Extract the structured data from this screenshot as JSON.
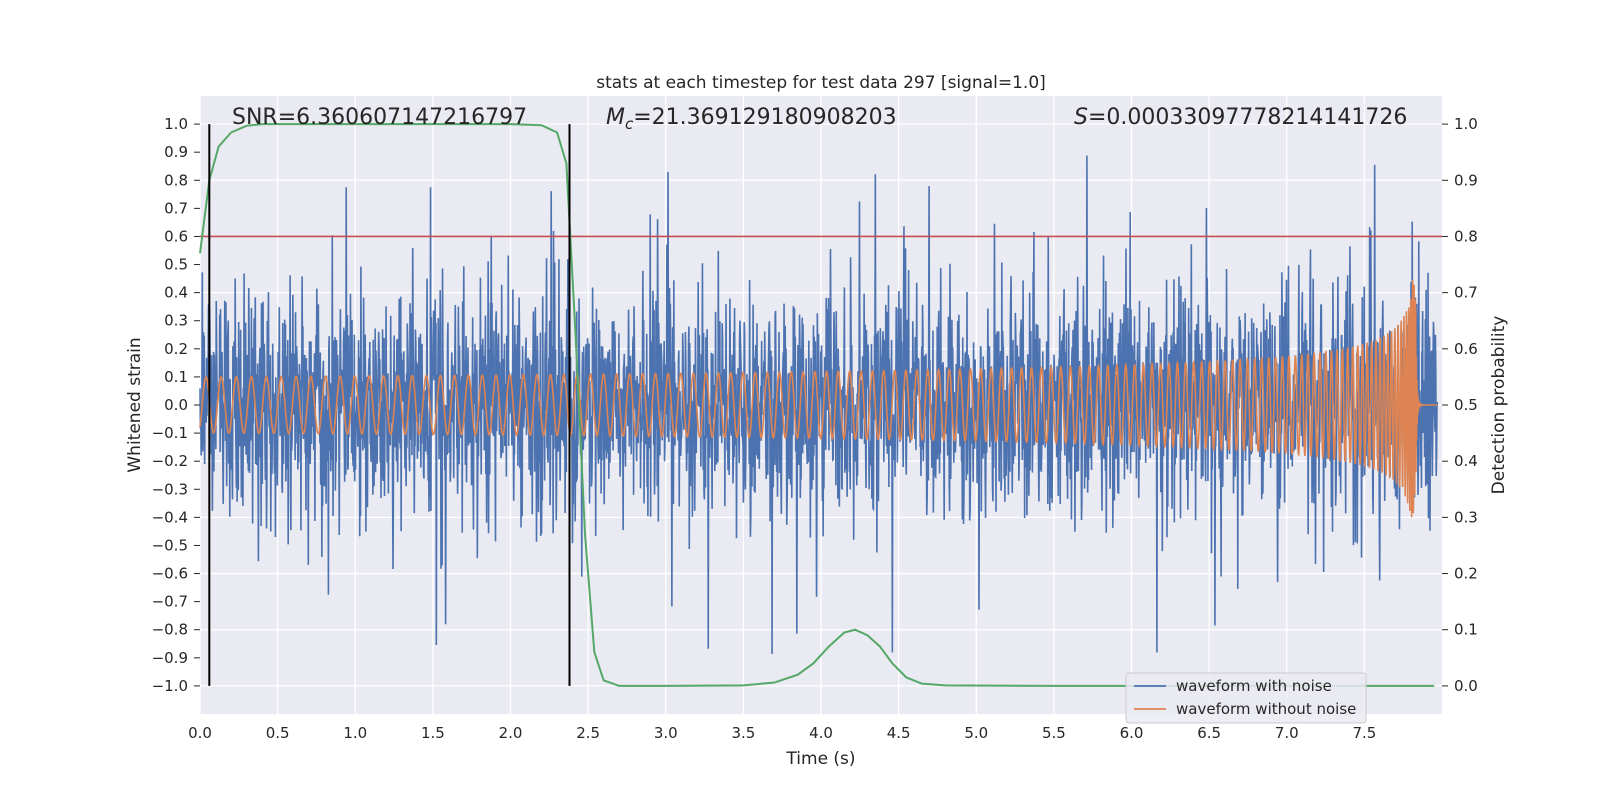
{
  "chart_data": {
    "type": "line",
    "title": "stats at each timestep for test data 297 [signal=1.0]",
    "xlabel": "Time (s)",
    "ylabel": "Whitened strain",
    "y2label": "Detection probability",
    "xlim": [
      0.0,
      8.0
    ],
    "ylim": [
      -1.1,
      1.1
    ],
    "y2lim": [
      -0.05,
      1.05
    ],
    "xticks": [
      "0.0",
      "0.5",
      "1.0",
      "1.5",
      "2.0",
      "2.5",
      "3.0",
      "3.5",
      "4.0",
      "4.5",
      "5.0",
      "5.5",
      "6.0",
      "6.5",
      "7.0",
      "7.5"
    ],
    "yticks": [
      "1.0",
      "0.9",
      "0.8",
      "0.7",
      "0.6",
      "0.5",
      "0.4",
      "0.3",
      "0.2",
      "0.1",
      "0.0",
      "−0.1",
      "−0.2",
      "−0.3",
      "−0.4",
      "−0.5",
      "−0.6",
      "−0.7",
      "−0.8",
      "−0.9",
      "−1.0"
    ],
    "y2ticks": [
      "1.0",
      "0.9",
      "0.8",
      "0.7",
      "0.6",
      "0.5",
      "0.4",
      "0.3",
      "0.2",
      "0.1",
      "0.0"
    ],
    "grid": true,
    "legend_placement": "lower-right",
    "stats": {
      "snr_label": "SNR=6.360607147216797",
      "mc_symbol": "M",
      "mc_sub": "c",
      "mc_value": "=21.369129180908203",
      "s_symbol": "S",
      "s_value": "=0.00033097778214141726"
    },
    "threshold": {
      "value": 0.8,
      "axis": "y2",
      "color": "#c44e52"
    },
    "vlines": [
      0.06,
      2.38
    ],
    "series": [
      {
        "name": "waveform with noise",
        "color": "#4c72b0",
        "kind": "noise",
        "typical_amplitude": 0.45,
        "peak_amplitude": 1.0
      },
      {
        "name": "waveform without noise",
        "color": "#dd8452",
        "kind": "chirp",
        "merger_time": 7.83,
        "peak_amplitude": 0.5
      },
      {
        "name": "",
        "color": "#55a868",
        "axis": "y2",
        "x": [
          0.0,
          0.06,
          0.12,
          0.2,
          0.3,
          0.4,
          0.6,
          1.0,
          1.5,
          2.0,
          2.2,
          2.3,
          2.36,
          2.42,
          2.48,
          2.54,
          2.6,
          2.7,
          3.0,
          3.5,
          3.7,
          3.85,
          3.95,
          4.05,
          4.15,
          4.22,
          4.3,
          4.38,
          4.46,
          4.55,
          4.65,
          4.8,
          5.5,
          6.5,
          7.5,
          7.95
        ],
        "y": [
          0.77,
          0.9,
          0.96,
          0.985,
          0.997,
          1.0,
          1.0,
          1.0,
          1.0,
          1.0,
          0.998,
          0.985,
          0.93,
          0.62,
          0.27,
          0.06,
          0.01,
          0.0,
          0.0,
          0.001,
          0.006,
          0.02,
          0.04,
          0.07,
          0.095,
          0.1,
          0.09,
          0.07,
          0.04,
          0.015,
          0.004,
          0.001,
          0.0,
          0.0,
          0.0,
          0.0
        ]
      }
    ]
  }
}
